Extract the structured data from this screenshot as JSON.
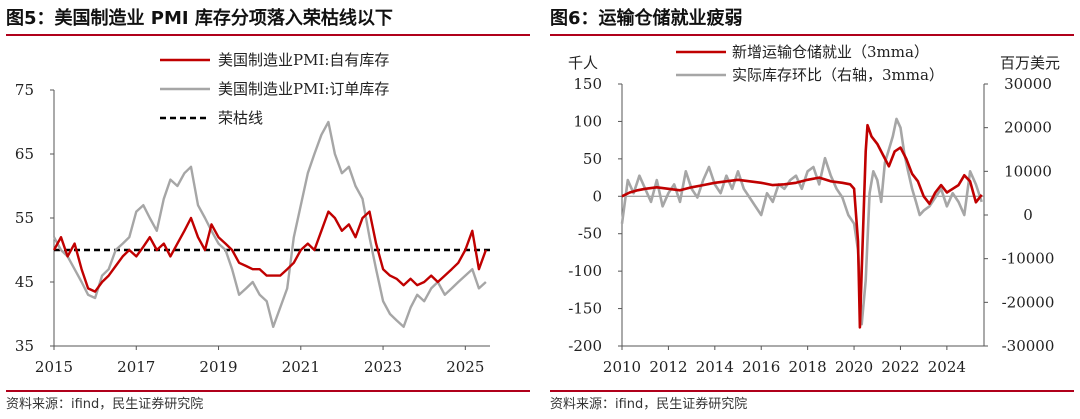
{
  "left_panel": {
    "title": "图5：美国制造业 PMI 库存分项落入荣枯线以下",
    "source": "资料来源：ifind，民生证券研究院"
  },
  "right_panel": {
    "title": "图6：运输仓储就业疲弱",
    "source": "资料来源：ifind，民生证券研究院"
  },
  "chart_data": [
    {
      "type": "line",
      "title": "图5：美国制造业 PMI 库存分项落入荣枯线以下",
      "xlim": [
        2015,
        2025.6
      ],
      "ylim": [
        35,
        75
      ],
      "x_ticks": [
        "2015",
        "2017",
        "2019",
        "2021",
        "2023",
        "2025"
      ],
      "y_ticks": [
        "35",
        "45",
        "55",
        "65",
        "75"
      ],
      "legend": "top-center",
      "grid": false,
      "series": [
        {
          "name": "美国制造业PMI:自有库存",
          "color": "#c00000",
          "points": [
            [
              2015.0,
              50
            ],
            [
              2015.17,
              52
            ],
            [
              2015.33,
              49
            ],
            [
              2015.5,
              51
            ],
            [
              2015.67,
              47
            ],
            [
              2015.83,
              44
            ],
            [
              2016.0,
              43.5
            ],
            [
              2016.17,
              45
            ],
            [
              2016.33,
              46
            ],
            [
              2016.5,
              47.5
            ],
            [
              2016.67,
              49
            ],
            [
              2016.83,
              50
            ],
            [
              2017.0,
              49
            ],
            [
              2017.17,
              50.5
            ],
            [
              2017.33,
              52
            ],
            [
              2017.5,
              50
            ],
            [
              2017.67,
              51
            ],
            [
              2017.83,
              49
            ],
            [
              2018.0,
              51
            ],
            [
              2018.17,
              53
            ],
            [
              2018.33,
              55
            ],
            [
              2018.5,
              52
            ],
            [
              2018.67,
              50
            ],
            [
              2018.83,
              54
            ],
            [
              2019.0,
              52
            ],
            [
              2019.17,
              51
            ],
            [
              2019.33,
              50
            ],
            [
              2019.5,
              48
            ],
            [
              2019.67,
              47.5
            ],
            [
              2019.83,
              47
            ],
            [
              2020.0,
              47
            ],
            [
              2020.17,
              46
            ],
            [
              2020.33,
              46
            ],
            [
              2020.5,
              46
            ],
            [
              2020.67,
              47
            ],
            [
              2020.83,
              48
            ],
            [
              2021.0,
              50
            ],
            [
              2021.17,
              51
            ],
            [
              2021.33,
              50
            ],
            [
              2021.5,
              53
            ],
            [
              2021.67,
              56
            ],
            [
              2021.83,
              55
            ],
            [
              2022.0,
              53
            ],
            [
              2022.17,
              54
            ],
            [
              2022.33,
              52
            ],
            [
              2022.5,
              55
            ],
            [
              2022.67,
              56
            ],
            [
              2022.83,
              51
            ],
            [
              2023.0,
              47
            ],
            [
              2023.17,
              46
            ],
            [
              2023.33,
              45.5
            ],
            [
              2023.5,
              44.5
            ],
            [
              2023.67,
              45.5
            ],
            [
              2023.83,
              44.5
            ],
            [
              2024.0,
              45
            ],
            [
              2024.17,
              46
            ],
            [
              2024.33,
              45
            ],
            [
              2024.5,
              46
            ],
            [
              2024.67,
              47
            ],
            [
              2024.83,
              48
            ],
            [
              2025.0,
              50
            ],
            [
              2025.17,
              53
            ],
            [
              2025.33,
              47
            ],
            [
              2025.5,
              50
            ]
          ]
        },
        {
          "name": "美国制造业PMI:订单库存",
          "color": "#a6a6a6",
          "points": [
            [
              2015.0,
              52
            ],
            [
              2015.17,
              50
            ],
            [
              2015.33,
              49
            ],
            [
              2015.5,
              47
            ],
            [
              2015.67,
              45
            ],
            [
              2015.83,
              43
            ],
            [
              2016.0,
              42.5
            ],
            [
              2016.17,
              46
            ],
            [
              2016.33,
              47
            ],
            [
              2016.5,
              50
            ],
            [
              2016.67,
              51
            ],
            [
              2016.83,
              52
            ],
            [
              2017.0,
              56
            ],
            [
              2017.17,
              57
            ],
            [
              2017.33,
              55
            ],
            [
              2017.5,
              53
            ],
            [
              2017.67,
              58
            ],
            [
              2017.83,
              61
            ],
            [
              2018.0,
              60
            ],
            [
              2018.17,
              62
            ],
            [
              2018.33,
              63
            ],
            [
              2018.5,
              57
            ],
            [
              2018.67,
              55
            ],
            [
              2018.83,
              53
            ],
            [
              2019.0,
              51
            ],
            [
              2019.17,
              50
            ],
            [
              2019.33,
              47
            ],
            [
              2019.5,
              43
            ],
            [
              2019.67,
              44
            ],
            [
              2019.83,
              45
            ],
            [
              2020.0,
              43
            ],
            [
              2020.17,
              42
            ],
            [
              2020.33,
              38
            ],
            [
              2020.5,
              41
            ],
            [
              2020.67,
              44
            ],
            [
              2020.83,
              52
            ],
            [
              2021.0,
              57
            ],
            [
              2021.17,
              62
            ],
            [
              2021.33,
              65
            ],
            [
              2021.5,
              68
            ],
            [
              2021.67,
              70
            ],
            [
              2021.83,
              65
            ],
            [
              2022.0,
              62
            ],
            [
              2022.17,
              63
            ],
            [
              2022.33,
              60
            ],
            [
              2022.5,
              58
            ],
            [
              2022.67,
              52
            ],
            [
              2022.83,
              47
            ],
            [
              2023.0,
              42
            ],
            [
              2023.17,
              40
            ],
            [
              2023.33,
              39
            ],
            [
              2023.5,
              38
            ],
            [
              2023.67,
              41
            ],
            [
              2023.83,
              43
            ],
            [
              2024.0,
              42
            ],
            [
              2024.17,
              44
            ],
            [
              2024.33,
              45
            ],
            [
              2024.5,
              43
            ],
            [
              2024.67,
              44
            ],
            [
              2024.83,
              45
            ],
            [
              2025.0,
              46
            ],
            [
              2025.17,
              47
            ],
            [
              2025.33,
              44
            ],
            [
              2025.5,
              45
            ]
          ]
        },
        {
          "name": "荣枯线",
          "color": "#000000",
          "dashed": true,
          "points": [
            [
              2015.0,
              50
            ],
            [
              2025.6,
              50
            ]
          ]
        }
      ]
    },
    {
      "type": "line",
      "title": "图6：运输仓储就业疲弱",
      "y_left_label": "千人",
      "y_right_label": "百万美元",
      "xlim": [
        2010,
        2025.6
      ],
      "ylim": [
        -200,
        150
      ],
      "y2lim": [
        -30000,
        30000
      ],
      "x_ticks": [
        "2010",
        "2012",
        "2014",
        "2016",
        "2018",
        "2020",
        "2022",
        "2024"
      ],
      "y_ticks": [
        "-200",
        "-150",
        "-100",
        "-50",
        "0",
        "50",
        "100",
        "150"
      ],
      "y2_ticks": [
        "-30000",
        "-20000",
        "-10000",
        "0",
        "10000",
        "20000",
        "30000"
      ],
      "legend": "top-center",
      "grid": false,
      "series": [
        {
          "name": "新增运输仓储就业（3mma）",
          "color": "#c00000",
          "axis": "left",
          "points": [
            [
              2010.0,
              0
            ],
            [
              2010.33,
              5
            ],
            [
              2010.67,
              8
            ],
            [
              2011.0,
              10
            ],
            [
              2011.5,
              12
            ],
            [
              2012.0,
              10
            ],
            [
              2012.5,
              8
            ],
            [
              2013.0,
              12
            ],
            [
              2013.5,
              15
            ],
            [
              2014.0,
              18
            ],
            [
              2014.5,
              20
            ],
            [
              2015.0,
              22
            ],
            [
              2015.5,
              20
            ],
            [
              2016.0,
              18
            ],
            [
              2016.5,
              15
            ],
            [
              2017.0,
              16
            ],
            [
              2017.5,
              18
            ],
            [
              2018.0,
              22
            ],
            [
              2018.5,
              25
            ],
            [
              2019.0,
              20
            ],
            [
              2019.5,
              18
            ],
            [
              2019.83,
              16
            ],
            [
              2020.0,
              10
            ],
            [
              2020.17,
              -60
            ],
            [
              2020.25,
              -175
            ],
            [
              2020.33,
              -100
            ],
            [
              2020.5,
              60
            ],
            [
              2020.58,
              95
            ],
            [
              2020.75,
              80
            ],
            [
              2021.0,
              70
            ],
            [
              2021.25,
              55
            ],
            [
              2021.5,
              40
            ],
            [
              2021.75,
              60
            ],
            [
              2022.0,
              65
            ],
            [
              2022.25,
              50
            ],
            [
              2022.5,
              30
            ],
            [
              2022.75,
              20
            ],
            [
              2023.0,
              0
            ],
            [
              2023.25,
              -10
            ],
            [
              2023.5,
              5
            ],
            [
              2023.75,
              15
            ],
            [
              2024.0,
              5
            ],
            [
              2024.25,
              10
            ],
            [
              2024.5,
              15
            ],
            [
              2024.75,
              28
            ],
            [
              2025.0,
              20
            ],
            [
              2025.25,
              -8
            ],
            [
              2025.5,
              2
            ]
          ]
        },
        {
          "name": "实际库存环比（右轴，3mma）",
          "color": "#a6a6a6",
          "axis": "right",
          "points": [
            [
              2010.0,
              -2000
            ],
            [
              2010.25,
              8000
            ],
            [
              2010.5,
              5000
            ],
            [
              2010.75,
              9000
            ],
            [
              2011.0,
              6000
            ],
            [
              2011.25,
              3000
            ],
            [
              2011.5,
              8000
            ],
            [
              2011.75,
              2000
            ],
            [
              2012.0,
              5000
            ],
            [
              2012.25,
              7000
            ],
            [
              2012.5,
              3000
            ],
            [
              2012.75,
              10000
            ],
            [
              2013.0,
              6000
            ],
            [
              2013.25,
              4000
            ],
            [
              2013.5,
              8000
            ],
            [
              2013.75,
              11000
            ],
            [
              2014.0,
              7000
            ],
            [
              2014.25,
              5000
            ],
            [
              2014.5,
              9000
            ],
            [
              2014.75,
              6000
            ],
            [
              2015.0,
              10000
            ],
            [
              2015.25,
              6000
            ],
            [
              2015.5,
              4000
            ],
            [
              2015.75,
              2000
            ],
            [
              2016.0,
              0
            ],
            [
              2016.25,
              5000
            ],
            [
              2016.5,
              3000
            ],
            [
              2016.75,
              7000
            ],
            [
              2017.0,
              6000
            ],
            [
              2017.25,
              8000
            ],
            [
              2017.5,
              9000
            ],
            [
              2017.75,
              6000
            ],
            [
              2018.0,
              10000
            ],
            [
              2018.25,
              11000
            ],
            [
              2018.5,
              7000
            ],
            [
              2018.75,
              13000
            ],
            [
              2019.0,
              9000
            ],
            [
              2019.25,
              6000
            ],
            [
              2019.5,
              4000
            ],
            [
              2019.75,
              0
            ],
            [
              2020.0,
              -2000
            ],
            [
              2020.17,
              -8000
            ],
            [
              2020.33,
              -25000
            ],
            [
              2020.5,
              -15000
            ],
            [
              2020.67,
              5000
            ],
            [
              2020.83,
              10000
            ],
            [
              2021.0,
              8000
            ],
            [
              2021.17,
              3000
            ],
            [
              2021.33,
              12000
            ],
            [
              2021.5,
              15000
            ],
            [
              2021.67,
              18000
            ],
            [
              2021.83,
              22000
            ],
            [
              2022.0,
              20000
            ],
            [
              2022.17,
              14000
            ],
            [
              2022.33,
              10000
            ],
            [
              2022.5,
              6000
            ],
            [
              2022.67,
              3000
            ],
            [
              2022.83,
              0
            ],
            [
              2023.0,
              1000
            ],
            [
              2023.25,
              2000
            ],
            [
              2023.5,
              4000
            ],
            [
              2023.75,
              6000
            ],
            [
              2024.0,
              2000
            ],
            [
              2024.25,
              5000
            ],
            [
              2024.5,
              3000
            ],
            [
              2024.75,
              0
            ],
            [
              2025.0,
              10000
            ],
            [
              2025.25,
              7000
            ],
            [
              2025.5,
              3000
            ]
          ]
        }
      ]
    }
  ]
}
